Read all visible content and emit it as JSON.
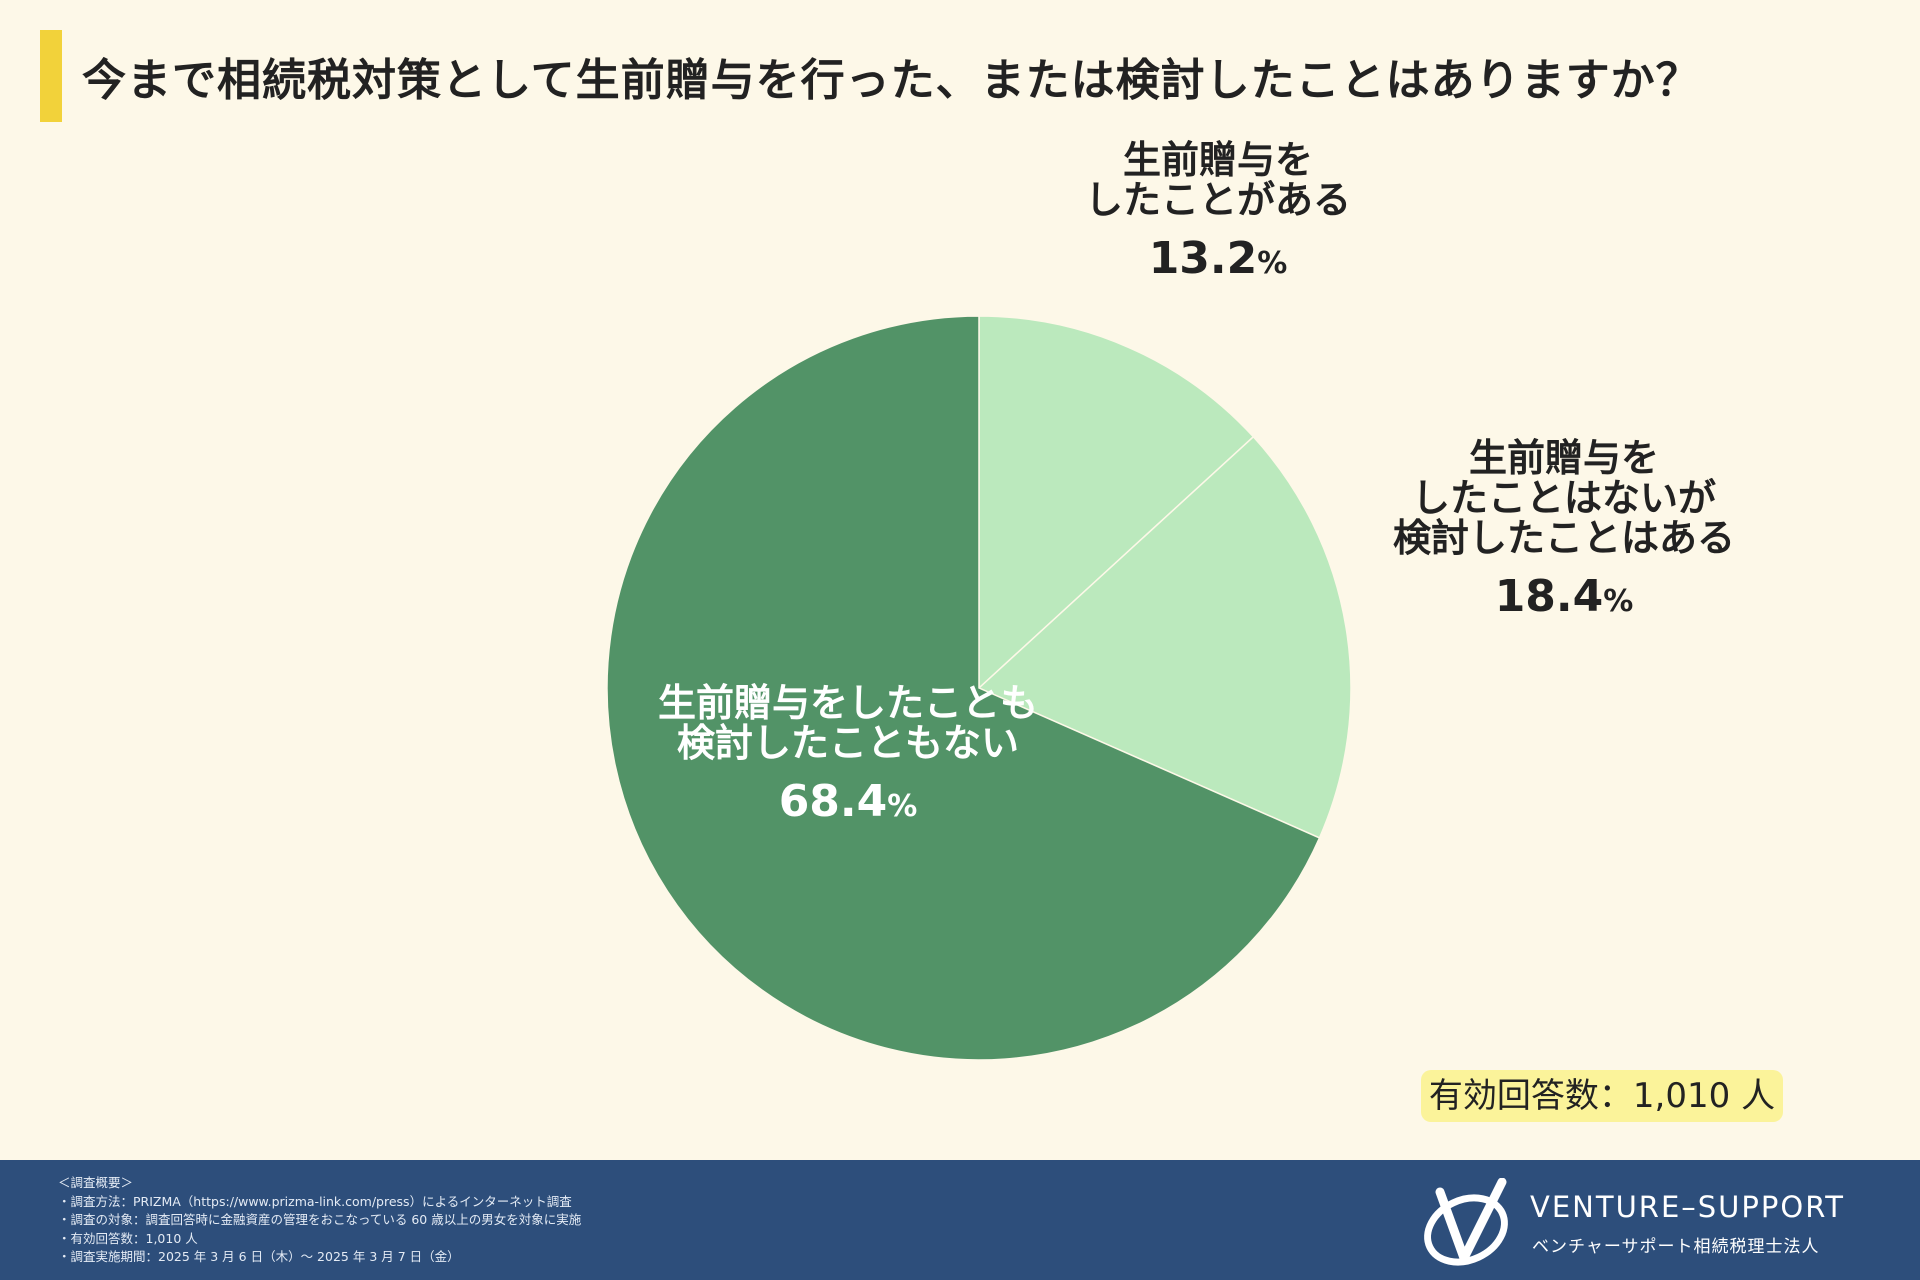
{
  "title": "今まで相続税対策として生前贈与を行った、または検討したことはありますか？",
  "colors": {
    "background": "#fdf8e8",
    "title_accent": "#f2d23a",
    "slice_light": "#bbe9bd",
    "slice_dark": "#529367",
    "footer_bg": "#2d4e7b",
    "badge_bg": "#fbf39a"
  },
  "chart_data": {
    "type": "pie",
    "title": "今まで相続税対策として生前贈与を行った、または検討したことはありますか？",
    "start_angle": "12 o'clock",
    "direction": "clockwise",
    "slices": [
      {
        "label_lines": [
          "生前贈与を",
          "したことがある"
        ],
        "value": 13.2,
        "value_text": "13.2",
        "color": "#bbe9bd"
      },
      {
        "label_lines": [
          "生前贈与を",
          "したことはないが",
          "検討したことはある"
        ],
        "value": 18.4,
        "value_text": "18.4",
        "color": "#bbe9bd"
      },
      {
        "label_lines": [
          "生前贈与をしたことも",
          "検討したこともない"
        ],
        "value": 68.4,
        "value_text": "68.4",
        "color": "#529367"
      }
    ],
    "unit": "%"
  },
  "respondents_badge": "有効回答数：1,010 人",
  "footer": {
    "notes": [
      "＜調査概要＞",
      "・調査方法：PRIZMA（https://www.prizma-link.com/press）によるインターネット調査",
      "・調査の対象：調査回答時に金融資産の管理をおこなっている 60 歳以上の男女を対象に実施",
      "・有効回答数：1,010 人",
      "・調査実施期間：2025 年 3 月 6 日（木）～ 2025 年 3 月 7 日（金）"
    ],
    "brand_name": "VENTURE–SUPPORT",
    "brand_sub": "ベンチャーサポート相続税理士法人",
    "brand_icon": "v-logo-icon"
  }
}
